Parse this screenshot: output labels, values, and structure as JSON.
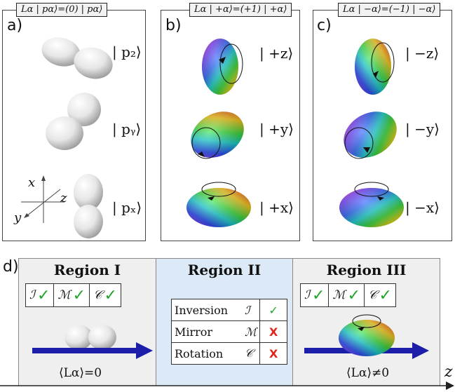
{
  "panels": [
    {
      "label": "a)",
      "header": "Lα | pα⟩=(0) | pα⟩",
      "kets": [
        "| p₂⟩",
        "| pᵧ⟩",
        "| pₓ⟩"
      ]
    },
    {
      "label": "b)",
      "header": "Lα | +α⟩=(+1) | +α⟩",
      "kets": [
        "| +z⟩",
        "| +y⟩",
        "| +x⟩"
      ]
    },
    {
      "label": "c)",
      "header": "Lα | −α⟩=(−1) | −α⟩",
      "kets": [
        "| −z⟩",
        "| −y⟩",
        "| −x⟩"
      ]
    }
  ],
  "axes": {
    "x": "x",
    "y": "y",
    "z": "z"
  },
  "panel_d": {
    "label": "d)",
    "regions": [
      {
        "title": "Region I",
        "symbols": [
          "ℐ",
          "ℳ",
          "𝒞"
        ],
        "result": "⟨Lα⟩=0"
      },
      {
        "title": "Region II",
        "rows": [
          {
            "name": "Inversion",
            "symbol": "ℐ",
            "mark": "✓"
          },
          {
            "name": "Mirror",
            "symbol": "ℳ",
            "mark": "X"
          },
          {
            "name": "Rotation",
            "symbol": "𝒞",
            "mark": "X"
          }
        ]
      },
      {
        "title": "Region III",
        "symbols": [
          "ℐ",
          "ℳ",
          "𝒞"
        ],
        "result": "⟨Lα⟩≠0"
      }
    ],
    "axis_label": "z",
    "check_mark": "✓"
  },
  "colors": {
    "check": "#22a52a",
    "cross": "#e0261b",
    "arrow": "#1a1ea8",
    "region2_bg": "#dceaf8",
    "region_bg": "#efefef"
  }
}
